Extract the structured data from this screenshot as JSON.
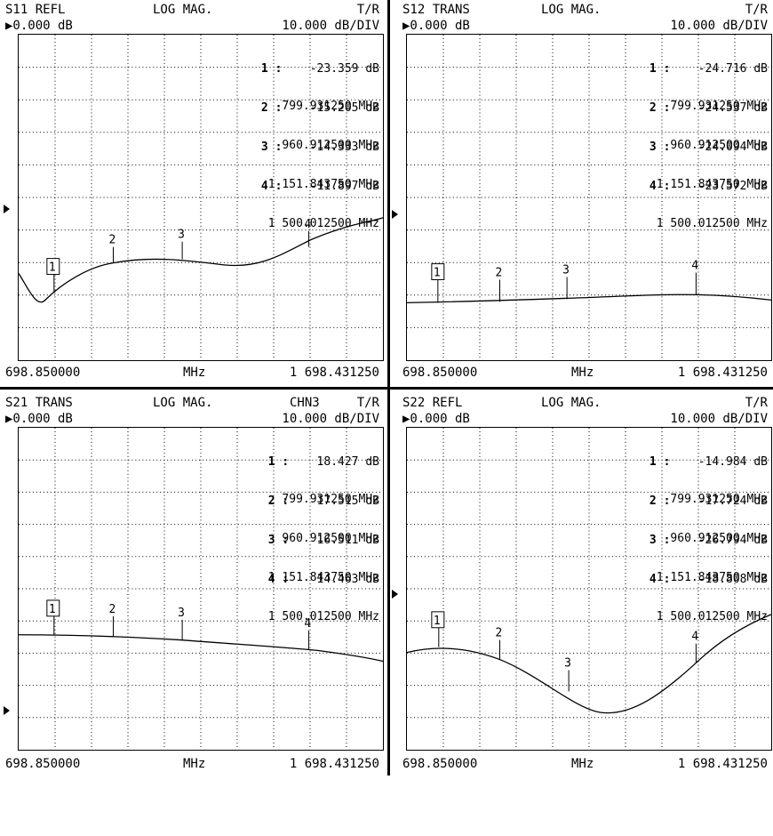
{
  "panels": [
    {
      "param": "S11 REFL",
      "format": "LOG MAG.",
      "channel": "",
      "mode": "T/R",
      "ref": "▶0.000 dB",
      "scale": "10.000 dB/DIV",
      "start": "698.850000",
      "unit": "MHz",
      "stop": "1 698.431250",
      "markers": [
        {
          "label": "1 :",
          "value": "-23.359 dB",
          "freq": "799.931250 MHz"
        },
        {
          "label": "2 :",
          "value": "-15.205 dB",
          "freq": "960.912500 MHz"
        },
        {
          "label": "3 :",
          "value": "-14.333 dB",
          "freq": "1 151.843750 MHz"
        },
        {
          "label": "4 :",
          "value": "-11.897 dB",
          "freq": "1 500.012500 MHz"
        }
      ]
    },
    {
      "param": "S12 TRANS",
      "format": "LOG MAG.",
      "channel": "",
      "mode": "T/R",
      "ref": "▶0.000 dB",
      "scale": "10.000 dB/DIV",
      "start": "698.850000",
      "unit": "MHz",
      "stop": "1 698.431250",
      "markers": [
        {
          "label": "1 :",
          "value": "-24.716 dB",
          "freq": "799.931250 MHz"
        },
        {
          "label": "2 :",
          "value": "-24.537 dB",
          "freq": "960.912500 MHz"
        },
        {
          "label": "3 :",
          "value": "-24.094 dB",
          "freq": "1 151.843750 MHz"
        },
        {
          "label": "4 :",
          "value": "-23.572 dB",
          "freq": "1 500.012500 MHz"
        }
      ]
    },
    {
      "param": "S21 TRANS",
      "format": "LOG MAG.",
      "channel": "CHN3",
      "mode": "T/R",
      "ref": "▶0.000 dB",
      "scale": "10.000 dB/DIV",
      "start": "698.850000",
      "unit": "MHz",
      "stop": "1 698.431250",
      "markers": [
        {
          "label": "1 :",
          "value": "18.427 dB",
          "freq": "799.931250 MHz"
        },
        {
          "label": "2 :",
          "value": "17.515 dB",
          "freq": "960.912500 MHz"
        },
        {
          "label": "3 :",
          "value": "16.511 dB",
          "freq": "1 151.843750 MHz"
        },
        {
          "label": "4 :",
          "value": "14.463 dB",
          "freq": "1 500.012500 MHz"
        }
      ]
    },
    {
      "param": "S22 REFL",
      "format": "LOG MAG.",
      "channel": "",
      "mode": "T/R",
      "ref": "▶0.000 dB",
      "scale": "10.000 dB/DIV",
      "start": "698.850000",
      "unit": "MHz",
      "stop": "1 698.431250",
      "markers": [
        {
          "label": "1 :",
          "value": "-14.984 dB",
          "freq": "799.931250 MHz"
        },
        {
          "label": "2 :",
          "value": "-17.724 dB",
          "freq": "960.912500 MHz"
        },
        {
          "label": "3 :",
          "value": "-26.794 dB",
          "freq": "1 151.843750 MHz"
        },
        {
          "label": "4 :",
          "value": "-18.808 dB",
          "freq": "1 500.012500 MHz"
        }
      ]
    }
  ],
  "marker_tags": [
    "1",
    "2",
    "3",
    "4"
  ]
}
